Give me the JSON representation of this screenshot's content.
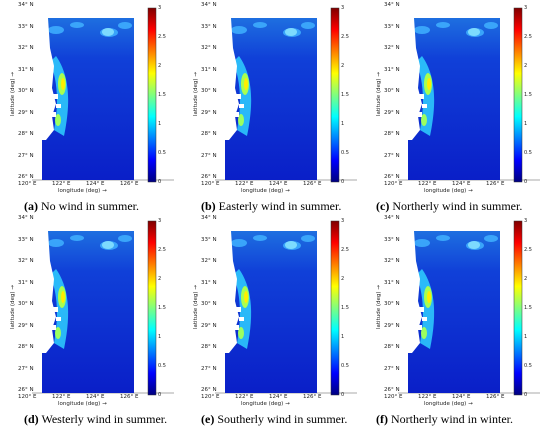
{
  "panels": [
    {
      "letter": "(a)",
      "caption": "No wind in summer."
    },
    {
      "letter": "(b)",
      "caption": "Easterly wind in summer."
    },
    {
      "letter": "(c)",
      "caption": "Northerly wind in summer."
    },
    {
      "letter": "(d)",
      "caption": "Westerly wind in summer."
    },
    {
      "letter": "(e)",
      "caption": "Southerly wind in summer."
    },
    {
      "letter": "(f)",
      "caption": "Northerly wind in winter."
    }
  ],
  "axes": {
    "xlabel": "longitude (deg) →",
    "ylabel": "latitude (deg) →",
    "xticks": [
      "120° E",
      "122° E",
      "124° E",
      "126° E"
    ],
    "yticks": [
      "34° N",
      "33° N",
      "32° N",
      "31° N",
      "30° N",
      "29° N",
      "28° N",
      "27° N",
      "26° N"
    ]
  },
  "colorbar": {
    "ticks": [
      "3",
      "2.5",
      "2",
      "1.5",
      "1",
      "0.5",
      "0"
    ],
    "colors": [
      "#00007f",
      "#0000ff",
      "#007fff",
      "#00ffff",
      "#7fff7f",
      "#ffff00",
      "#ff7f00",
      "#ff0000",
      "#7f0000"
    ]
  }
}
